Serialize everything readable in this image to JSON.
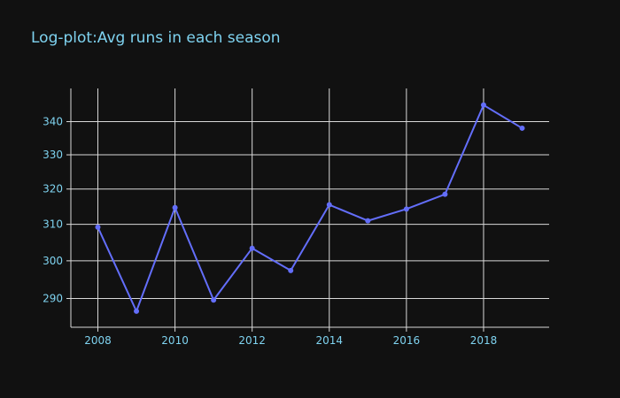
{
  "chart_data": {
    "type": "line",
    "title": "Log-plot:Avg runs in each season",
    "xlabel": "",
    "ylabel": "",
    "y_scale": "log",
    "grid": true,
    "x": [
      2008,
      2009,
      2010,
      2011,
      2012,
      2013,
      2014,
      2015,
      2016,
      2017,
      2018,
      2019
    ],
    "series": [
      {
        "values": [
          309.2,
          286.7,
          314.7,
          289.6,
          303.4,
          297.4,
          315.5,
          311.0,
          314.3,
          318.5,
          345.1,
          338.0
        ]
      }
    ],
    "x_ticks": [
      "2008",
      "2010",
      "2012",
      "2014",
      "2016",
      "2018"
    ],
    "y_ticks": [
      "290",
      "300",
      "310",
      "320",
      "330",
      "340"
    ],
    "xlim": [
      2007.3,
      2019.7
    ],
    "ylim": [
      282.6,
      350.3
    ],
    "colors": {
      "background": "#111111",
      "line": "#636efa",
      "grid": "#d9d9d9",
      "text": "#7fd3f0"
    }
  }
}
